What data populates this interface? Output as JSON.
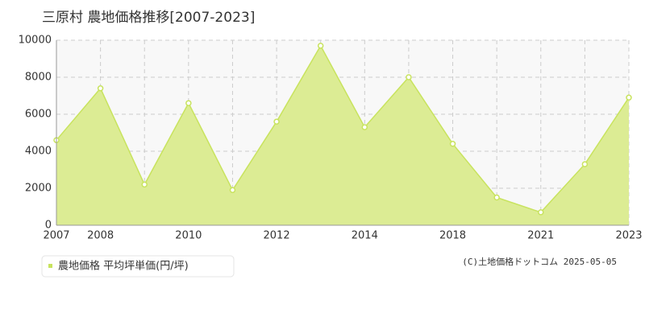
{
  "chart_data": {
    "type": "area",
    "title": "三原村 農地価格推移[2007-2023]",
    "categories": [
      "2007",
      "2008",
      null,
      "2010",
      null,
      "2012",
      null,
      "2014",
      null,
      "2018",
      null,
      "2021",
      null,
      "2023"
    ],
    "series": [
      {
        "name": "農地価格 平均坪単価(円/坪)",
        "color": "#c8e35e",
        "fill": "#dcec94",
        "values": [
          4600,
          7400,
          2200,
          6600,
          1900,
          5600,
          9700,
          5300,
          8000,
          4400,
          1500,
          700,
          3300,
          6900
        ]
      }
    ],
    "ylim": [
      0,
      10000
    ],
    "yticks": [
      0,
      2000,
      4000,
      6000,
      8000,
      10000
    ],
    "grid": true,
    "legend": "bottom-left",
    "copyright": "(C)土地価格ドットコム 2025-05-05"
  }
}
